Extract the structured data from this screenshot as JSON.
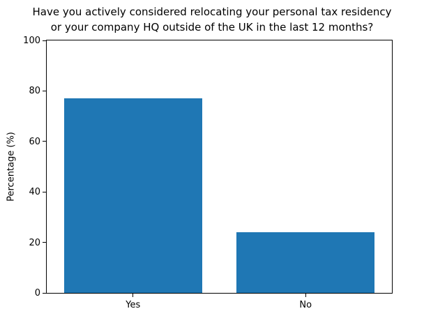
{
  "chart_data": {
    "type": "bar",
    "title": "Have you actively considered relocating your personal tax residency or your company HQ outside of the UK in the last 12 months?",
    "title_lines": [
      "Have you actively considered relocating your personal tax residency",
      "or your company HQ outside of the UK in the last 12 months?"
    ],
    "categories": [
      "Yes",
      "No"
    ],
    "values": [
      77,
      24
    ],
    "xlabel": "",
    "ylabel": "Percentage (%)",
    "ylim": [
      0,
      100
    ],
    "yticks": [
      0,
      20,
      40,
      60,
      80,
      100
    ],
    "bar_color": "#1f77b4",
    "bar_width_fraction": 0.8,
    "grid": false,
    "legend": false,
    "background_color": "#ffffff",
    "text_color": "#000000"
  }
}
